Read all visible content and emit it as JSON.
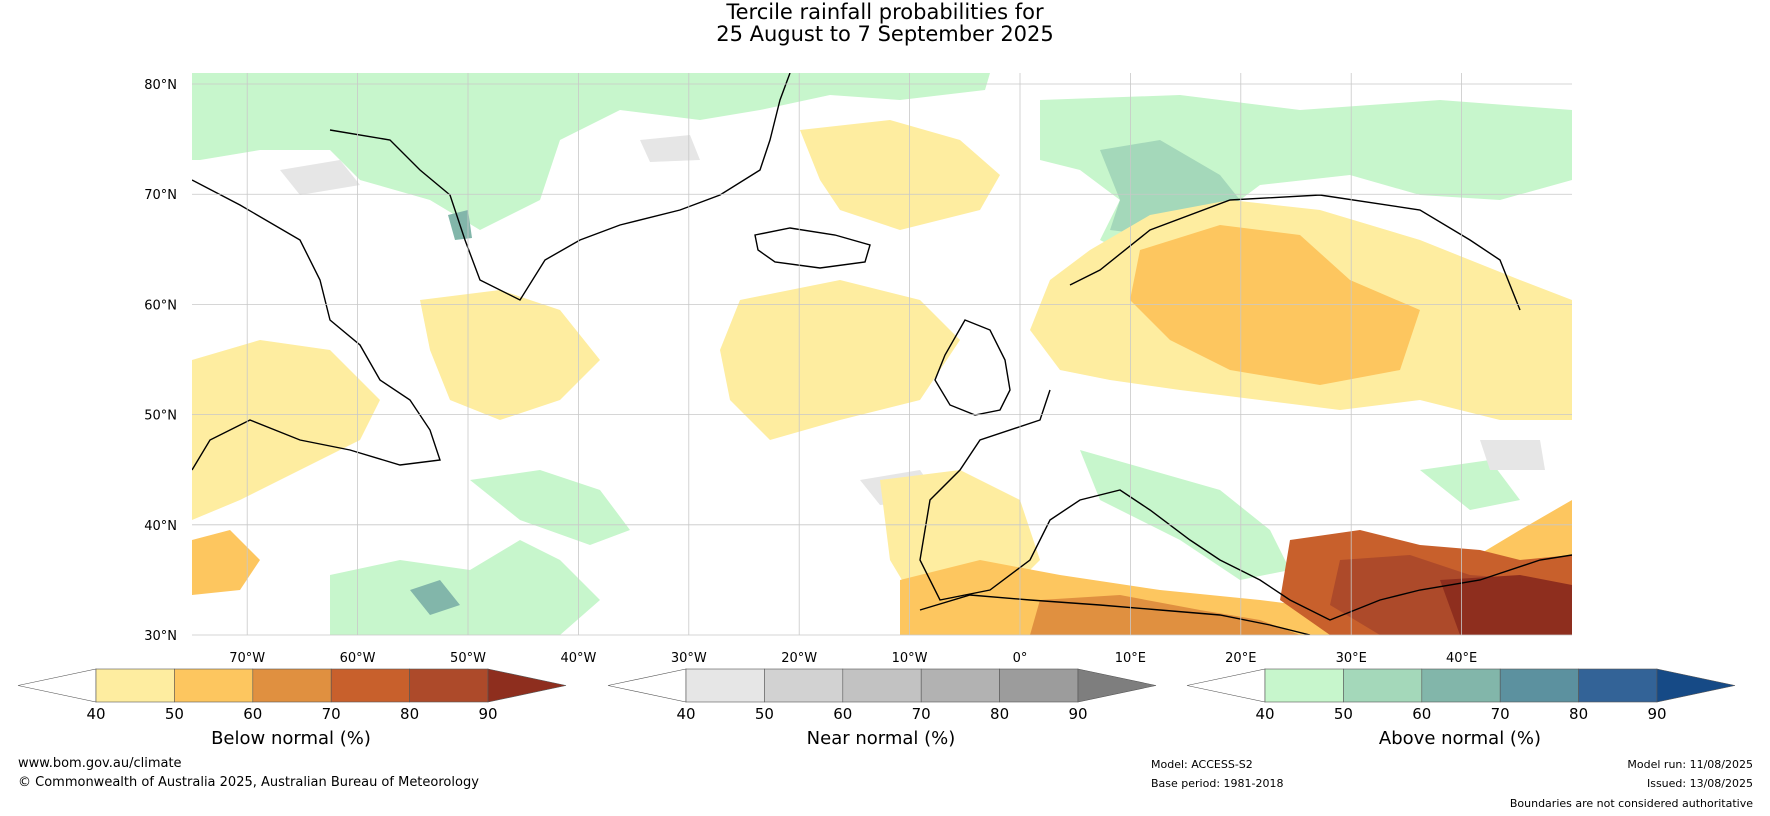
{
  "title": {
    "line1": "Tercile rainfall probabilities for",
    "line2": "25 August to 7 September 2025"
  },
  "map": {
    "lat_labels": [
      "80°N",
      "70°N",
      "60°N",
      "50°N",
      "40°N",
      "30°N"
    ],
    "lat_values": [
      80,
      70,
      60,
      50,
      40,
      30
    ],
    "lon_labels": [
      "70°W",
      "60°W",
      "50°W",
      "40°W",
      "30°W",
      "20°W",
      "10°W",
      "0°",
      "10°E",
      "20°E",
      "30°E",
      "40°E"
    ],
    "lon_values": [
      -70,
      -60,
      -50,
      -40,
      -30,
      -20,
      -10,
      0,
      10,
      20,
      30,
      40
    ],
    "extent": {
      "lon_min": -75,
      "lon_max": 50,
      "lat_min": 30,
      "lat_max": 81
    }
  },
  "colorbars": [
    {
      "id": "below",
      "label": "Below normal (%)",
      "ticks": [
        "40",
        "50",
        "60",
        "70",
        "80",
        "90"
      ],
      "colors": [
        "#ffffff",
        "#feeda0",
        "#fdc65f",
        "#e09040",
        "#c8602c",
        "#ad4a2a",
        "#8e2e1e"
      ]
    },
    {
      "id": "near",
      "label": "Near normal (%)",
      "ticks": [
        "40",
        "50",
        "60",
        "70",
        "80",
        "90"
      ],
      "colors": [
        "#ffffff",
        "#e6e6e6",
        "#d2d2d2",
        "#c2c2c2",
        "#b2b2b2",
        "#9c9c9c",
        "#7e7e7e"
      ]
    },
    {
      "id": "above",
      "label": "Above normal (%)",
      "ticks": [
        "40",
        "50",
        "60",
        "70",
        "80",
        "90"
      ],
      "colors": [
        "#ffffff",
        "#c7f6cc",
        "#a4d8ba",
        "#82b6aa",
        "#5c919f",
        "#336397",
        "#164a86"
      ]
    }
  ],
  "footer": {
    "website": "www.bom.gov.au/climate",
    "copyright": "© Commonwealth of Australia 2025, Australian Bureau of Meteorology",
    "model": "Model: ACCESS-S2",
    "base_period": "Base period: 1981-2018",
    "model_run": "Model run: 11/08/2025",
    "issued": "Issued: 13/08/2025",
    "disclaimer": "Boundaries are not considered authoritative"
  }
}
